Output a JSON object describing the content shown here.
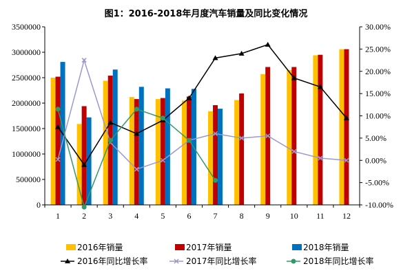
{
  "chart_data": {
    "type": "bar",
    "title": "图1：2016-2018年月度汽车销量及同比变化情况",
    "categories": [
      "1",
      "2",
      "3",
      "4",
      "5",
      "6",
      "7",
      "8",
      "9",
      "10",
      "11",
      "12"
    ],
    "y_left": {
      "ylim": [
        0,
        3500000
      ],
      "ticks": [
        "0",
        "500000",
        "1000000",
        "1500000",
        "2000000",
        "2500000",
        "3000000",
        "3500000"
      ],
      "tick_values": [
        0,
        500000,
        1000000,
        1500000,
        2000000,
        2500000,
        3000000,
        3500000
      ]
    },
    "y_right": {
      "ylim": [
        -10,
        30
      ],
      "ticks": [
        "-10.00%",
        "-5.00%",
        "0.00%",
        "5.00%",
        "10.00%",
        "15.00%",
        "20.00%",
        "25.00%",
        "30.00%"
      ],
      "tick_values": [
        -10,
        -5,
        0,
        5,
        10,
        15,
        20,
        25,
        30
      ]
    },
    "bar_series": [
      {
        "name": "2016年销量",
        "color": "#FFC000",
        "values": [
          2500000,
          1590000,
          2440000,
          2120000,
          2080000,
          2050000,
          1840000,
          2060000,
          2570000,
          2650000,
          2940000,
          3060000
        ]
      },
      {
        "name": "2017年销量",
        "color": "#C00000",
        "values": [
          2520000,
          1940000,
          2540000,
          2080000,
          2100000,
          2130000,
          1960000,
          2190000,
          2710000,
          2710000,
          2950000,
          3060000
        ]
      },
      {
        "name": "2018年销量",
        "color": "#0070C0",
        "values": [
          2810000,
          1720000,
          2660000,
          2320000,
          2290000,
          2280000,
          1890000,
          null,
          null,
          null,
          null,
          null
        ]
      }
    ],
    "line_series": [
      {
        "name": "2016年同比增长率",
        "color": "#000000",
        "marker": "triangle",
        "values": [
          7.5,
          -1.0,
          8.5,
          6.0,
          9.0,
          14.0,
          23.0,
          24.0,
          26.0,
          18.5,
          16.5,
          9.5
        ]
      },
      {
        "name": "2017年同比增长率",
        "color": "#9999CC",
        "marker": "x",
        "values": [
          0.2,
          22.5,
          4.0,
          -2.0,
          0.0,
          4.5,
          6.0,
          5.0,
          5.5,
          2.0,
          0.5,
          0.0
        ]
      },
      {
        "name": "2018年同比增长率",
        "color": "#339966",
        "marker": "circle",
        "values": [
          11.5,
          -10.5,
          4.5,
          11.5,
          9.5,
          4.5,
          -4.5,
          null,
          null,
          null,
          null,
          null
        ]
      }
    ],
    "legend": [
      {
        "label": "2016年销量",
        "swatch": "bar",
        "color": "#FFC000"
      },
      {
        "label": "2017年销量",
        "swatch": "bar",
        "color": "#C00000"
      },
      {
        "label": "2018年销量",
        "swatch": "bar",
        "color": "#0070C0"
      },
      {
        "label": "2016年同比增长率",
        "swatch": "line",
        "marker": "triangle",
        "color": "#000000"
      },
      {
        "label": "2017年同比增长率",
        "swatch": "line",
        "marker": "x",
        "color": "#9999CC"
      },
      {
        "label": "2018年同比增长率",
        "swatch": "line",
        "marker": "circle",
        "color": "#339966"
      }
    ],
    "legend_position": "bottom",
    "grid": false
  }
}
